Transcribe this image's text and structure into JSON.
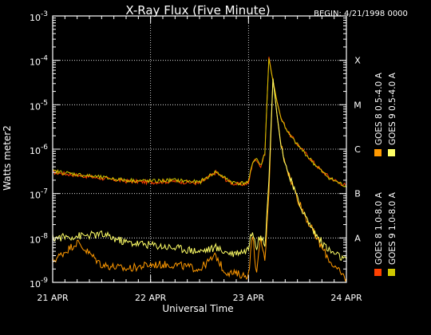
{
  "chart_data": {
    "type": "line",
    "title": "X-Ray Flux (Five Minute)",
    "begin_label": "BEGIN: 4/21/1998 0000",
    "xlabel": "Universal Time",
    "ylabel": "Watts meter2",
    "x_ticks": [
      "21 APR",
      "22 APR",
      "23 APR",
      "24 APR"
    ],
    "xlim": [
      0,
      72
    ],
    "x_unit": "hours since 21 APR 0000 UT",
    "y_scale": "log",
    "ylim": [
      1e-09,
      0.001
    ],
    "y_ticks": [
      {
        "base": "10",
        "exp": "-3"
      },
      {
        "base": "10",
        "exp": "-4"
      },
      {
        "base": "10",
        "exp": "-5"
      },
      {
        "base": "10",
        "exp": "-6"
      },
      {
        "base": "10",
        "exp": "-7"
      },
      {
        "base": "10",
        "exp": "-8"
      },
      {
        "base": "10",
        "exp": "-9"
      }
    ],
    "flare_classes": [
      {
        "label": "X",
        "value": 0.0001
      },
      {
        "label": "M",
        "value": 1e-05
      },
      {
        "label": "C",
        "value": 1e-06
      },
      {
        "label": "B",
        "value": 1e-07
      },
      {
        "label": "A",
        "value": 1e-08
      }
    ],
    "grid": "dotted horizontal at each flare class and vertical at each day boundary",
    "series": [
      {
        "name": "GOES 8 1.0-8.0 A",
        "color": "#ff4000",
        "band": "long",
        "x": [
          0,
          6,
          12,
          18,
          24,
          30,
          36,
          40,
          42,
          44,
          46,
          48,
          49,
          50,
          51,
          52,
          53,
          54,
          55,
          56,
          58,
          60,
          62,
          64,
          66,
          68,
          70,
          72
        ],
        "y": [
          3e-07,
          2.6e-07,
          2.2e-07,
          1.9e-07,
          1.8e-07,
          1.9e-07,
          1.7e-07,
          3e-07,
          2.2e-07,
          1.7e-07,
          1.6e-07,
          1.7e-07,
          5e-07,
          6e-07,
          4e-07,
          8e-07,
          0.00012,
          3.5e-05,
          1.2e-05,
          5e-06,
          2.2e-06,
          1.3e-06,
          8e-07,
          5e-07,
          3.2e-07,
          2.3e-07,
          1.8e-07,
          1.5e-07
        ]
      },
      {
        "name": "GOES 8 0.5-4.0 A",
        "color": "#ff9900",
        "band": "short",
        "x": [
          0,
          6,
          12,
          18,
          24,
          30,
          36,
          40,
          42,
          44,
          46,
          47,
          48,
          49,
          50,
          51,
          52,
          53,
          54,
          55,
          56,
          58,
          60,
          62,
          64,
          66,
          68,
          70,
          72
        ],
        "y": [
          3e-09,
          8e-09,
          2.5e-09,
          2e-09,
          2.5e-09,
          2.5e-09,
          2e-09,
          4e-09,
          1.8e-09,
          1.6e-09,
          1.5e-09,
          1.4e-09,
          1.5e-09,
          1.2e-08,
          1.5e-09,
          1e-08,
          3e-09,
          1e-07,
          4e-05,
          6e-06,
          1.2e-06,
          2.5e-07,
          8e-08,
          3e-08,
          1.3e-08,
          6e-09,
          3e-09,
          1.8e-09,
          1.2e-09
        ]
      },
      {
        "name": "GOES 9 1.0-8.0 A",
        "color": "#d0c800",
        "band": "long",
        "x": [
          0,
          6,
          12,
          18,
          24,
          30,
          36,
          40,
          42,
          44,
          46,
          48,
          49,
          50,
          51,
          52,
          53,
          54,
          55,
          56,
          58,
          60,
          62,
          64,
          66,
          68,
          70,
          72
        ],
        "y": [
          3.2e-07,
          2.7e-07,
          2.3e-07,
          2e-07,
          1.9e-07,
          2e-07,
          1.8e-07,
          3.1e-07,
          2.3e-07,
          1.8e-07,
          1.7e-07,
          1.8e-07,
          5.2e-07,
          6.2e-07,
          4.2e-07,
          8.2e-07,
          0.00011,
          3.4e-05,
          1.15e-05,
          4.8e-06,
          2.1e-06,
          1.25e-06,
          7.8e-07,
          4.8e-07,
          3.1e-07,
          2.2e-07,
          1.75e-07,
          1.45e-07
        ]
      },
      {
        "name": "GOES 9 0.5-4.0 A",
        "color": "#ffff66",
        "band": "short",
        "x": [
          0,
          6,
          12,
          18,
          24,
          30,
          36,
          40,
          42,
          44,
          46,
          47,
          48,
          49,
          50,
          51,
          52,
          53,
          54,
          55,
          56,
          58,
          60,
          62,
          64,
          66,
          68,
          70,
          72
        ],
        "y": [
          1e-08,
          1.1e-08,
          1.2e-08,
          8e-09,
          7e-09,
          6e-09,
          5e-09,
          6e-09,
          5e-09,
          4.5e-09,
          5e-09,
          5e-09,
          6e-09,
          1.6e-08,
          6e-09,
          1.3e-08,
          6e-09,
          2e-07,
          3.8e-05,
          5.8e-06,
          1.1e-06,
          2.4e-07,
          7.5e-08,
          3e-08,
          1.4e-08,
          8e-09,
          5e-09,
          4e-09,
          3e-09
        ]
      }
    ]
  }
}
